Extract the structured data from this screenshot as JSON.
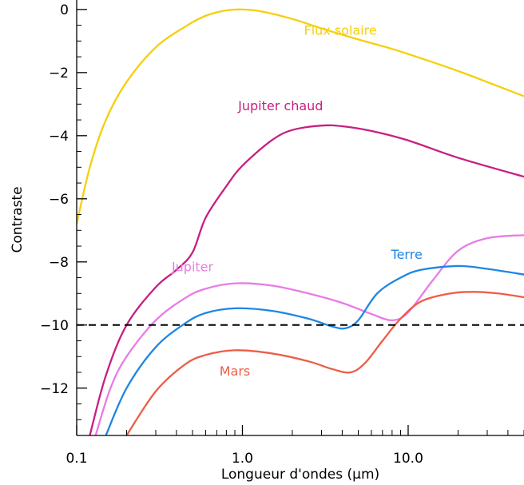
{
  "chart_data": {
    "type": "line",
    "title": "",
    "xlabel": "Longueur d'ondes (μm)",
    "ylabel": "Contraste",
    "xscale": "log",
    "xlim": [
      0.1,
      50
    ],
    "ylim": [
      -13.5,
      0.3
    ],
    "grid": false,
    "xticks": [
      {
        "value": 0.1,
        "label": "0.1"
      },
      {
        "value": 1.0,
        "label": "1.0"
      },
      {
        "value": 10.0,
        "label": "10.0"
      }
    ],
    "yticks": [
      {
        "value": 0,
        "label": "0"
      },
      {
        "value": -2,
        "label": "−2"
      },
      {
        "value": -4,
        "label": "−4"
      },
      {
        "value": -6,
        "label": "−6"
      },
      {
        "value": -8,
        "label": "−8"
      },
      {
        "value": -10,
        "label": "−10"
      },
      {
        "value": -12,
        "label": "−12"
      }
    ],
    "reference_line": {
      "y": -10,
      "style": "dashed",
      "color": "#000000"
    },
    "series": [
      {
        "name": "Flux solaire",
        "color": "#f5cf0c",
        "label_at": [
          3.9,
          -0.8
        ],
        "points": [
          [
            0.1,
            -6.8
          ],
          [
            0.12,
            -5.0
          ],
          [
            0.15,
            -3.5
          ],
          [
            0.2,
            -2.3
          ],
          [
            0.3,
            -1.2
          ],
          [
            0.45,
            -0.55
          ],
          [
            0.6,
            -0.2
          ],
          [
            0.8,
            -0.03
          ],
          [
            1.0,
            0.0
          ],
          [
            1.3,
            -0.06
          ],
          [
            2.0,
            -0.3
          ],
          [
            3.0,
            -0.6
          ],
          [
            5.0,
            -0.95
          ],
          [
            8.0,
            -1.25
          ],
          [
            12.0,
            -1.55
          ],
          [
            20.0,
            -1.95
          ],
          [
            30.0,
            -2.3
          ],
          [
            50.0,
            -2.75
          ]
        ]
      },
      {
        "name": "Jupiter chaud",
        "color": "#c71f82",
        "label_at": [
          1.7,
          -3.2
        ],
        "points": [
          [
            0.12,
            -13.5
          ],
          [
            0.15,
            -11.6
          ],
          [
            0.2,
            -10.0
          ],
          [
            0.3,
            -8.8
          ],
          [
            0.4,
            -8.25
          ],
          [
            0.5,
            -7.7
          ],
          [
            0.6,
            -6.6
          ],
          [
            0.8,
            -5.6
          ],
          [
            1.0,
            -4.95
          ],
          [
            1.5,
            -4.15
          ],
          [
            2.0,
            -3.82
          ],
          [
            3.0,
            -3.68
          ],
          [
            4.0,
            -3.7
          ],
          [
            6.0,
            -3.85
          ],
          [
            10.0,
            -4.15
          ],
          [
            20.0,
            -4.7
          ],
          [
            50.0,
            -5.3
          ]
        ]
      },
      {
        "name": "Jupiter",
        "color": "#e97be6",
        "label_at": [
          0.5,
          -8.3
        ],
        "points": [
          [
            0.13,
            -13.5
          ],
          [
            0.16,
            -12.0
          ],
          [
            0.2,
            -11.0
          ],
          [
            0.3,
            -9.85
          ],
          [
            0.45,
            -9.15
          ],
          [
            0.6,
            -8.85
          ],
          [
            0.9,
            -8.68
          ],
          [
            1.5,
            -8.75
          ],
          [
            2.5,
            -9.0
          ],
          [
            4.0,
            -9.3
          ],
          [
            6.0,
            -9.65
          ],
          [
            8.0,
            -9.85
          ],
          [
            10.0,
            -9.6
          ],
          [
            14.0,
            -8.6
          ],
          [
            20.0,
            -7.65
          ],
          [
            30.0,
            -7.25
          ],
          [
            50.0,
            -7.15
          ]
        ]
      },
      {
        "name": "Terre",
        "color": "#1e86e4",
        "label_at": [
          9.8,
          -7.9
        ],
        "points": [
          [
            0.15,
            -13.5
          ],
          [
            0.2,
            -12.0
          ],
          [
            0.3,
            -10.7
          ],
          [
            0.45,
            -9.95
          ],
          [
            0.6,
            -9.62
          ],
          [
            0.9,
            -9.47
          ],
          [
            1.5,
            -9.55
          ],
          [
            2.5,
            -9.8
          ],
          [
            3.5,
            -10.05
          ],
          [
            4.2,
            -10.1
          ],
          [
            5.0,
            -9.85
          ],
          [
            6.5,
            -9.0
          ],
          [
            9.0,
            -8.5
          ],
          [
            12.0,
            -8.25
          ],
          [
            20.0,
            -8.13
          ],
          [
            30.0,
            -8.22
          ],
          [
            50.0,
            -8.4
          ]
        ]
      },
      {
        "name": "Mars",
        "color": "#ec5d47",
        "label_at": [
          0.9,
          -11.6
        ],
        "points": [
          [
            0.2,
            -13.5
          ],
          [
            0.3,
            -12.1
          ],
          [
            0.45,
            -11.25
          ],
          [
            0.6,
            -10.95
          ],
          [
            0.9,
            -10.8
          ],
          [
            1.5,
            -10.9
          ],
          [
            2.5,
            -11.15
          ],
          [
            3.5,
            -11.4
          ],
          [
            4.5,
            -11.5
          ],
          [
            5.5,
            -11.2
          ],
          [
            7.0,
            -10.5
          ],
          [
            9.0,
            -9.8
          ],
          [
            12.0,
            -9.25
          ],
          [
            18.0,
            -9.0
          ],
          [
            25.0,
            -8.95
          ],
          [
            35.0,
            -9.0
          ],
          [
            50.0,
            -9.12
          ]
        ]
      }
    ]
  }
}
